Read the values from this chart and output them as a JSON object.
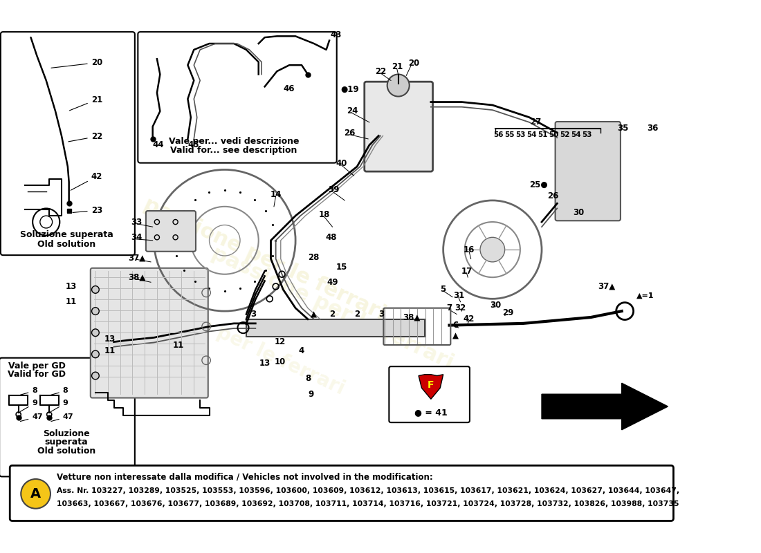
{
  "bg_color": "#ffffff",
  "watermark_text": "passione per le ferrari",
  "watermark_color": "#d4c850",
  "bottom_box": {
    "title": "Vetture non interessate dalla modifica / Vehicles not involved in the modification:",
    "line1": "Ass. Nr. 103227, 103289, 103525, 103553, 103596, 103600, 103609, 103612, 103613, 103615, 103617, 103621, 103624, 103627, 103644, 103647,",
    "line2": "103663, 103667, 103676, 103677, 103689, 103692, 103708, 103711, 103714, 103716, 103721, 103724, 103728, 103732, 103826, 103988, 103735"
  }
}
